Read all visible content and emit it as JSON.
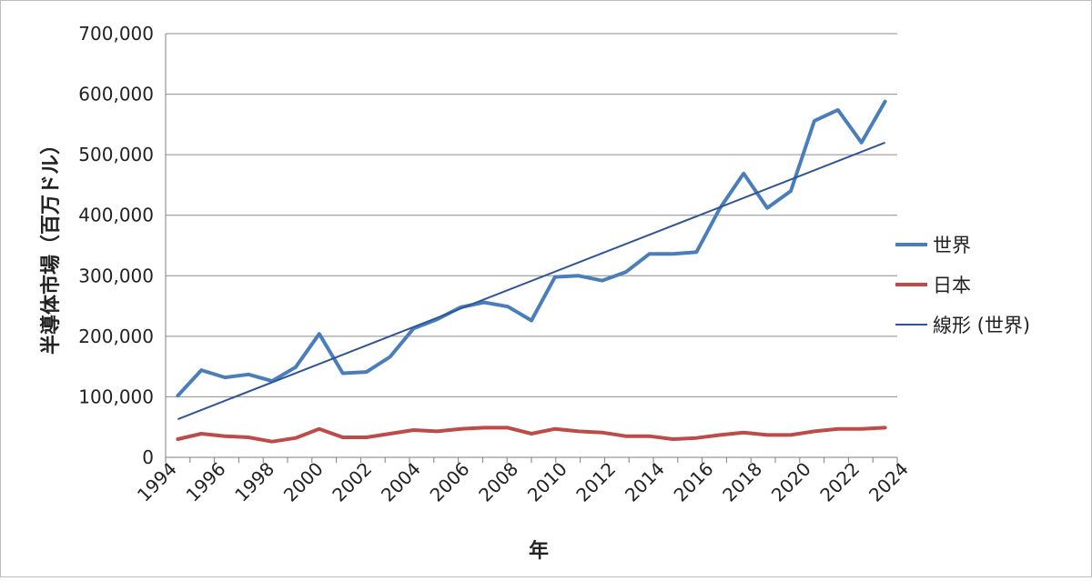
{
  "chart_data": {
    "type": "line",
    "title": "",
    "xlabel": "年",
    "ylabel": "半導体市場（百万ドル）",
    "ylim": [
      0,
      700000
    ],
    "xlim": [
      1994,
      2024
    ],
    "y_ticks": [
      0,
      100000,
      200000,
      300000,
      400000,
      500000,
      600000,
      700000
    ],
    "y_tick_labels": [
      "0",
      "100,000",
      "200,000",
      "300,000",
      "400,000",
      "500,000",
      "600,000",
      "700,000"
    ],
    "x_tick_labels": [
      "1994",
      "1996",
      "1998",
      "2000",
      "2002",
      "2004",
      "2006",
      "2008",
      "2010",
      "2012",
      "2014",
      "2016",
      "2018",
      "2020",
      "2022",
      "2024"
    ],
    "grid": "horizontal",
    "legend_position": "right",
    "x": [
      1994,
      1995,
      1996,
      1997,
      1998,
      1999,
      2000,
      2001,
      2002,
      2003,
      2004,
      2005,
      2006,
      2007,
      2008,
      2009,
      2010,
      2011,
      2012,
      2013,
      2014,
      2015,
      2016,
      2017,
      2018,
      2019,
      2020,
      2021,
      2022,
      2023,
      2024
    ],
    "series": [
      {
        "name": "世界",
        "color": "#4a7ebb",
        "values": [
          102000,
          144000,
          132000,
          137000,
          126000,
          149000,
          204000,
          139000,
          141000,
          166000,
          213000,
          228000,
          248000,
          256000,
          249000,
          226000,
          298000,
          300000,
          292000,
          306000,
          336000,
          336000,
          339000,
          412000,
          469000,
          412000,
          440000,
          556000,
          574000,
          520000,
          588000
        ]
      },
      {
        "name": "日本",
        "color": "#be4b48",
        "values": [
          30000,
          39000,
          35000,
          33000,
          26000,
          32000,
          47000,
          33000,
          33000,
          39000,
          45000,
          43000,
          47000,
          49000,
          49000,
          39000,
          47000,
          43000,
          41000,
          35000,
          35000,
          30000,
          32000,
          37000,
          41000,
          37000,
          37000,
          43000,
          47000,
          47000,
          49000
        ]
      },
      {
        "name": "線形 (世界)",
        "color": "#2f5597",
        "trendline": true,
        "values_at_ends": [
          63000,
          520000
        ]
      }
    ]
  }
}
